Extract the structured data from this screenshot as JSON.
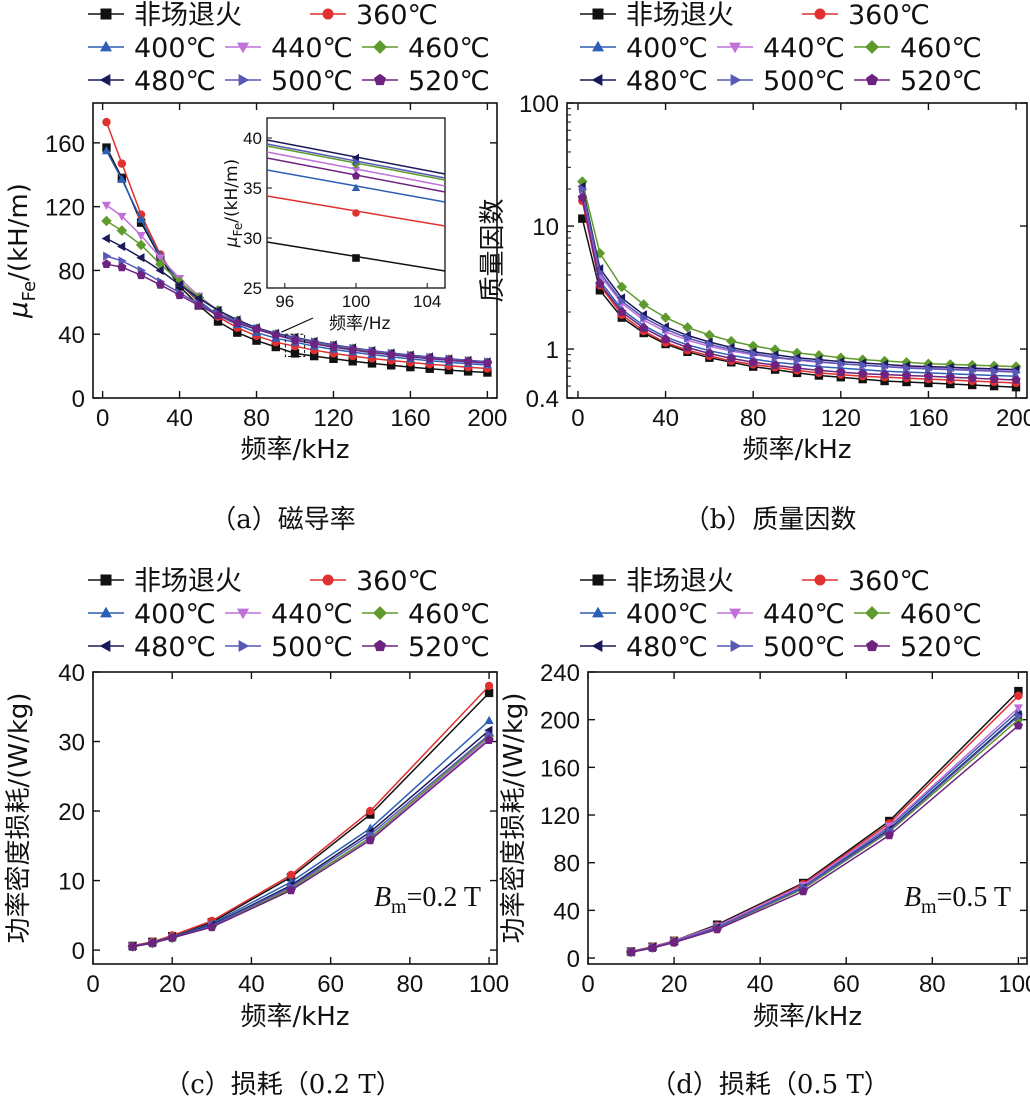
{
  "series_meta": [
    {
      "name": "非场退火",
      "color": "#111111",
      "marker": "square"
    },
    {
      "name": "360℃",
      "color": "#e03030",
      "marker": "circle"
    },
    {
      "name": "400℃",
      "color": "#2c5fb5",
      "marker": "tri-up"
    },
    {
      "name": "440℃",
      "color": "#c070d8",
      "marker": "tri-down"
    },
    {
      "name": "460℃",
      "color": "#5e9a2c",
      "marker": "diamond"
    },
    {
      "name": "480℃",
      "color": "#1a1a5a",
      "marker": "tri-left"
    },
    {
      "name": "500℃",
      "color": "#5858b8",
      "marker": "tri-right"
    },
    {
      "name": "520℃",
      "color": "#6e2380",
      "marker": "pentagon"
    }
  ],
  "chart_data": [
    {
      "id": "a",
      "type": "line",
      "caption": "（a）磁导率",
      "xlabel": "频率/kHz",
      "ylabel_main": "μ",
      "ylabel_sub": "Fe",
      "ylabel_rest": "/(kH/m)",
      "xlim": [
        -5,
        205
      ],
      "ylim": [
        0,
        185
      ],
      "xticks": [
        0,
        40,
        80,
        120,
        160,
        200
      ],
      "yticks": [
        0,
        40,
        80,
        120,
        160
      ],
      "x": [
        2,
        10,
        20,
        30,
        40,
        50,
        60,
        70,
        80,
        90,
        100,
        110,
        120,
        130,
        140,
        150,
        160,
        170,
        180,
        190,
        200
      ],
      "series": [
        {
          "name": "非场退火",
          "values": [
            157,
            138,
            110,
            88,
            70,
            58,
            48,
            41,
            36,
            32,
            28,
            26.3,
            24.6,
            23,
            21.7,
            20.5,
            19.4,
            18.4,
            17.5,
            16.7,
            16
          ]
        },
        {
          "name": "360℃",
          "values": [
            173,
            147,
            115,
            90,
            72,
            60,
            51,
            44,
            39,
            35,
            32.5,
            30,
            28,
            26.3,
            24.8,
            23.5,
            22.3,
            21.2,
            20.2,
            19.3,
            18.5
          ]
        },
        {
          "name": "400℃",
          "values": [
            155,
            137,
            112,
            89,
            72,
            61,
            52,
            46,
            41,
            37.5,
            35,
            32.5,
            30.5,
            28.8,
            27.2,
            25.8,
            24.5,
            23.4,
            22.4,
            21.5,
            20.7
          ]
        },
        {
          "name": "440℃",
          "values": [
            121,
            114,
            102,
            88,
            75,
            64,
            55,
            48,
            43,
            39.5,
            36.8,
            34.3,
            32.2,
            30.3,
            28.7,
            27.2,
            25.9,
            24.7,
            23.6,
            22.6,
            21.7
          ]
        },
        {
          "name": "460℃",
          "values": [
            111,
            105,
            96,
            84,
            73,
            63,
            55,
            48.5,
            43.5,
            40,
            37.4,
            34.9,
            32.8,
            30.9,
            29.2,
            27.7,
            26.4,
            25.2,
            24.1,
            23.1,
            22.2
          ]
        },
        {
          "name": "480℃",
          "values": [
            100,
            95,
            88,
            80,
            71,
            62.5,
            55,
            49,
            44,
            40.5,
            38,
            35.5,
            33.3,
            31.4,
            29.7,
            28.2,
            26.9,
            25.7,
            24.6,
            23.6,
            22.7
          ]
        },
        {
          "name": "500℃",
          "values": [
            89,
            86,
            80,
            73,
            66,
            59,
            53,
            48,
            43.5,
            40,
            37.6,
            35.2,
            33.1,
            31.2,
            29.6,
            28.1,
            26.8,
            25.6,
            24.5,
            23.5,
            22.6
          ]
        },
        {
          "name": "520℃",
          "values": [
            84,
            82,
            77,
            71,
            64.5,
            58,
            52,
            47,
            43,
            39.5,
            36.2,
            33.9,
            31.9,
            30.1,
            28.5,
            27.1,
            25.8,
            24.7,
            23.7,
            22.8,
            21.9
          ]
        }
      ],
      "inset": {
        "xlim": [
          95,
          105
        ],
        "ylim": [
          25,
          42
        ],
        "xticks": [
          96,
          100,
          104
        ],
        "yticks": [
          25,
          30,
          35,
          40
        ],
        "xlabel": "频率/Hz",
        "ylabel_main": "μ",
        "ylabel_sub": "Fe",
        "ylabel_rest": "/(kH/m)",
        "marker_x": 100,
        "lines": [
          {
            "name": "非场退火",
            "y0": 29.6,
            "y1": 26.7,
            "mark": 28
          },
          {
            "name": "360℃",
            "y0": 34.2,
            "y1": 31.2,
            "mark": 32.5
          },
          {
            "name": "400℃",
            "y0": 36.8,
            "y1": 33.6,
            "mark": 35
          },
          {
            "name": "440℃",
            "y0": 38.6,
            "y1": 35.2,
            "mark": 36.8
          },
          {
            "name": "460℃",
            "y0": 39.2,
            "y1": 35.8,
            "mark": 37.4
          },
          {
            "name": "480℃",
            "y0": 39.8,
            "y1": 36.4,
            "mark": 38
          },
          {
            "name": "500℃",
            "y0": 39.4,
            "y1": 36.0,
            "mark": 37.6
          },
          {
            "name": "520℃",
            "y0": 38.0,
            "y1": 34.6,
            "mark": 36.2
          }
        ]
      }
    },
    {
      "id": "b",
      "type": "line",
      "caption": "（b）质量因数",
      "xlabel": "频率/kHz",
      "ylabel": "质量因数",
      "yscale": "log",
      "xlim": [
        -5,
        205
      ],
      "ylim": [
        0.4,
        100
      ],
      "xticks": [
        0,
        40,
        80,
        120,
        160,
        200
      ],
      "yticks": [
        0.4,
        1,
        10,
        100
      ],
      "x": [
        2,
        10,
        20,
        30,
        40,
        50,
        60,
        70,
        80,
        90,
        100,
        110,
        120,
        130,
        140,
        150,
        160,
        170,
        180,
        190,
        200
      ],
      "series": [
        {
          "name": "非场退火",
          "values": [
            11.5,
            3.0,
            1.8,
            1.35,
            1.1,
            0.95,
            0.85,
            0.78,
            0.72,
            0.68,
            0.64,
            0.61,
            0.59,
            0.57,
            0.55,
            0.54,
            0.53,
            0.52,
            0.51,
            0.5,
            0.49
          ]
        },
        {
          "name": "360℃",
          "values": [
            16,
            3.3,
            1.9,
            1.4,
            1.13,
            0.98,
            0.88,
            0.8,
            0.75,
            0.71,
            0.67,
            0.64,
            0.62,
            0.6,
            0.59,
            0.58,
            0.57,
            0.56,
            0.55,
            0.54,
            0.53
          ]
        },
        {
          "name": "400℃",
          "values": [
            18,
            3.6,
            2.1,
            1.55,
            1.25,
            1.08,
            0.97,
            0.89,
            0.83,
            0.78,
            0.75,
            0.72,
            0.7,
            0.68,
            0.66,
            0.65,
            0.64,
            0.63,
            0.62,
            0.61,
            0.6
          ]
        },
        {
          "name": "440℃",
          "values": [
            19,
            4.0,
            2.35,
            1.72,
            1.38,
            1.18,
            1.05,
            0.96,
            0.9,
            0.85,
            0.81,
            0.78,
            0.76,
            0.74,
            0.72,
            0.71,
            0.7,
            0.69,
            0.68,
            0.67,
            0.66
          ]
        },
        {
          "name": "460℃",
          "values": [
            23,
            6.0,
            3.2,
            2.3,
            1.8,
            1.5,
            1.3,
            1.16,
            1.06,
            0.99,
            0.93,
            0.89,
            0.85,
            0.82,
            0.8,
            0.78,
            0.76,
            0.75,
            0.74,
            0.73,
            0.72
          ]
        },
        {
          "name": "480℃",
          "values": [
            21,
            4.5,
            2.6,
            1.9,
            1.52,
            1.29,
            1.14,
            1.03,
            0.95,
            0.9,
            0.85,
            0.82,
            0.79,
            0.77,
            0.75,
            0.73,
            0.72,
            0.71,
            0.7,
            0.69,
            0.68
          ]
        },
        {
          "name": "500℃",
          "values": [
            20,
            4.2,
            2.45,
            1.8,
            1.45,
            1.23,
            1.09,
            0.99,
            0.92,
            0.86,
            0.82,
            0.79,
            0.76,
            0.74,
            0.72,
            0.7,
            0.69,
            0.68,
            0.67,
            0.66,
            0.65
          ]
        },
        {
          "name": "520℃",
          "values": [
            17,
            3.4,
            2.0,
            1.48,
            1.2,
            1.03,
            0.92,
            0.84,
            0.78,
            0.74,
            0.7,
            0.67,
            0.65,
            0.63,
            0.62,
            0.61,
            0.6,
            0.59,
            0.58,
            0.57,
            0.56
          ]
        }
      ]
    },
    {
      "id": "c",
      "type": "line",
      "caption": "（c）损耗（0.2 T）",
      "xlabel": "频率/kHz",
      "ylabel": "功率密度损耗/(W/kg)",
      "note_main": "B",
      "note_sub": "m",
      "note_rest": "=0.2 T",
      "xlim": [
        0,
        102
      ],
      "ylim": [
        -2,
        40
      ],
      "xticks": [
        0,
        20,
        40,
        60,
        80,
        100
      ],
      "yticks": [
        0,
        10,
        20,
        30,
        40
      ],
      "x": [
        10,
        15,
        20,
        30,
        50,
        70,
        100
      ],
      "series": [
        {
          "name": "非场退火",
          "values": [
            0.6,
            1.2,
            2.0,
            4.0,
            10.5,
            19.5,
            37.0
          ]
        },
        {
          "name": "360℃",
          "values": [
            0.6,
            1.2,
            2.1,
            4.2,
            10.8,
            20.0,
            38.0
          ]
        },
        {
          "name": "400℃",
          "values": [
            0.55,
            1.1,
            1.9,
            3.8,
            9.8,
            17.5,
            33.0
          ]
        },
        {
          "name": "440℃",
          "values": [
            0.5,
            1.05,
            1.8,
            3.5,
            9.0,
            16.0,
            30.5
          ]
        },
        {
          "name": "460℃",
          "values": [
            0.5,
            1.0,
            1.75,
            3.4,
            8.8,
            16.2,
            30.8
          ]
        },
        {
          "name": "480℃",
          "values": [
            0.52,
            1.05,
            1.85,
            3.6,
            9.3,
            17.0,
            31.6
          ]
        },
        {
          "name": "500℃",
          "values": [
            0.5,
            1.0,
            1.8,
            3.5,
            9.1,
            16.6,
            31.0
          ]
        },
        {
          "name": "520℃",
          "values": [
            0.48,
            1.0,
            1.75,
            3.3,
            8.6,
            15.8,
            30.2
          ]
        }
      ]
    },
    {
      "id": "d",
      "type": "line",
      "caption": "（d）损耗（0.5 T）",
      "xlabel": "频率/kHz",
      "ylabel": "功率密度损耗/(W/kg)",
      "note_main": "B",
      "note_sub": "m",
      "note_rest": "=0.5 T",
      "xlim": [
        0,
        102
      ],
      "ylim": [
        -5,
        240
      ],
      "xticks": [
        0,
        20,
        40,
        60,
        80,
        100
      ],
      "yticks": [
        0,
        40,
        80,
        120,
        160,
        200,
        240
      ],
      "x": [
        10,
        15,
        20,
        30,
        50,
        70,
        100
      ],
      "series": [
        {
          "name": "非场退火",
          "values": [
            5.5,
            9.5,
            14.5,
            28,
            63,
            115,
            224
          ]
        },
        {
          "name": "360℃",
          "values": [
            5.5,
            9.5,
            14.5,
            27,
            62,
            113,
            220
          ]
        },
        {
          "name": "400℃",
          "values": [
            5.2,
            9.0,
            14.0,
            26,
            60,
            110,
            207
          ]
        },
        {
          "name": "440℃",
          "values": [
            5.3,
            9.2,
            14.2,
            27,
            61,
            111,
            210
          ]
        },
        {
          "name": "460℃",
          "values": [
            5.0,
            8.6,
            13.5,
            25,
            58,
            106,
            200
          ]
        },
        {
          "name": "480℃",
          "values": [
            5.1,
            8.8,
            13.7,
            25.5,
            59,
            108,
            204
          ]
        },
        {
          "name": "500℃",
          "values": [
            5.1,
            8.8,
            13.8,
            25.5,
            59,
            107,
            203
          ]
        },
        {
          "name": "520℃",
          "values": [
            4.8,
            8.4,
            13.0,
            24,
            56,
            103,
            195
          ]
        }
      ]
    }
  ]
}
